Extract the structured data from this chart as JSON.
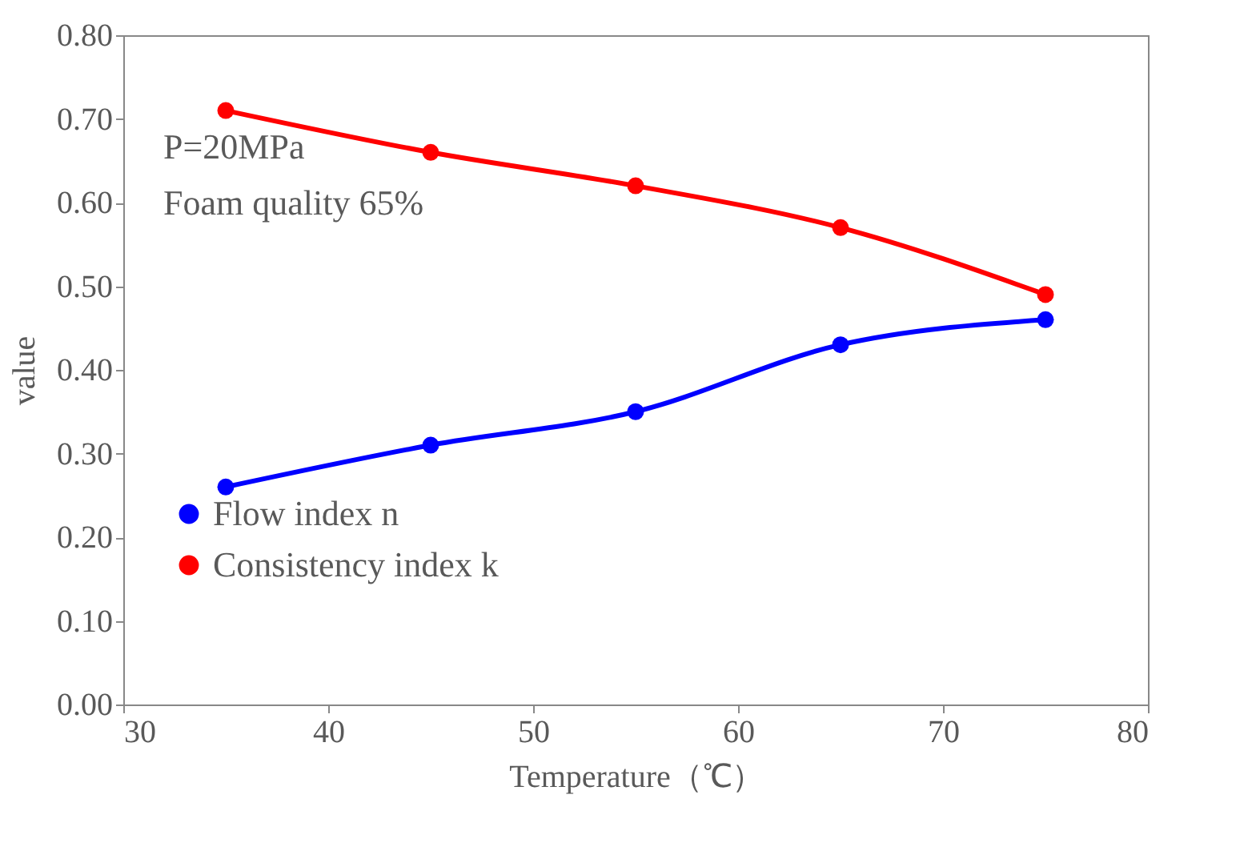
{
  "chart_data": {
    "type": "line",
    "xlabel": "Temperature（℃）",
    "ylabel": "value",
    "x": [
      35,
      45,
      55,
      65,
      75
    ],
    "series": [
      {
        "name": "Flow index n",
        "color": "#0000ff",
        "values": [
          0.26,
          0.31,
          0.35,
          0.43,
          0.46
        ]
      },
      {
        "name": "Consistency index k",
        "color": "#ff0000",
        "values": [
          0.71,
          0.66,
          0.62,
          0.57,
          0.49
        ]
      }
    ],
    "xlim": [
      30,
      80
    ],
    "xticks": [
      30,
      40,
      50,
      60,
      70,
      80
    ],
    "ylim": [
      0,
      0.8
    ],
    "yticks": [
      {
        "value": 0,
        "label": "0.00"
      },
      {
        "value": 0.1,
        "label": "0.10"
      },
      {
        "value": 0.2,
        "label": "0.20"
      },
      {
        "value": 0.3,
        "label": "0.30"
      },
      {
        "value": 0.4,
        "label": "0.40"
      },
      {
        "value": 0.5,
        "label": "0.50"
      },
      {
        "value": 0.6,
        "label": "0.60"
      },
      {
        "value": 0.7,
        "label": "0.70"
      },
      {
        "value": 0.8,
        "label": "0.80"
      }
    ],
    "annotations": [
      "P=20MPa",
      "Foam quality  65%"
    ],
    "grid": false,
    "legend": "bottom left",
    "marker": "circle",
    "line_style": "solid"
  }
}
